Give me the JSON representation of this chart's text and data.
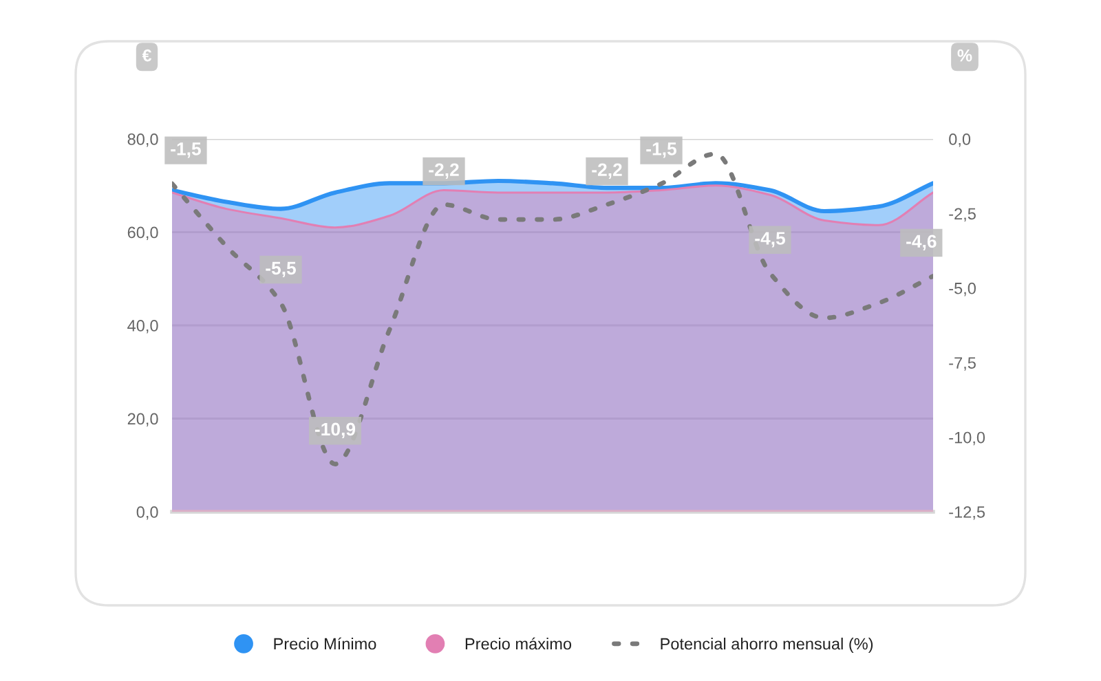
{
  "chart_data": {
    "type": "area",
    "categories": [
      null,
      null,
      null,
      null,
      null,
      null,
      null,
      null,
      null,
      null,
      null,
      null,
      null,
      null,
      null
    ],
    "ylabel": "€",
    "y2label": "%",
    "ylim": [
      0,
      80
    ],
    "yticks": [
      {
        "value": 0,
        "label": "0,0"
      },
      {
        "value": 20,
        "label": "20,0"
      },
      {
        "value": 40,
        "label": "40,0"
      },
      {
        "value": 60,
        "label": "60,0"
      },
      {
        "value": 80,
        "label": "80,0"
      }
    ],
    "y2lim": [
      -12.5,
      0
    ],
    "y2ticks": [
      {
        "value": -12.5,
        "label": "-12,5"
      },
      {
        "value": -10,
        "label": "-10,0"
      },
      {
        "value": -7.5,
        "label": "-7,5"
      },
      {
        "value": -5,
        "label": "-5,0"
      },
      {
        "value": -2.5,
        "label": "-2,5"
      },
      {
        "value": 0,
        "label": "0,0"
      }
    ],
    "grid": "y",
    "legend": "bottom",
    "series": [
      {
        "name": "Precio Mínimo",
        "color": "#2f93f3",
        "values": [
          69,
          66.5,
          65,
          68.5,
          70.5,
          70.5,
          71,
          70.5,
          69.5,
          69.5,
          70.5,
          69,
          64.5,
          65.5,
          70.5
        ]
      },
      {
        "name": "Precio máximo",
        "color": "#e27fb3",
        "values": [
          68.5,
          65,
          63,
          61,
          63.5,
          69,
          68.5,
          68.5,
          68.5,
          69,
          70,
          68,
          62.5,
          61.5,
          68.5
        ]
      },
      {
        "name": "Potencial ahorro mensual (%)",
        "type": "line",
        "axis": "y2",
        "color": "#7a7a7a",
        "line_style": "dashed",
        "values": [
          -1.5,
          -3.6,
          -5.5,
          -10.9,
          -6.4,
          -2.2,
          -2.7,
          -2.7,
          -2.2,
          -1.5,
          -0.5,
          -4.5,
          -6.0,
          -5.5,
          -4.6
        ],
        "value_labels": [
          "-1,5",
          null,
          "-5,5",
          "-10,9",
          null,
          "-2,2",
          null,
          null,
          "-2,2",
          "-1,5",
          null,
          "-4,5",
          null,
          null,
          "-4,6"
        ]
      }
    ]
  }
}
